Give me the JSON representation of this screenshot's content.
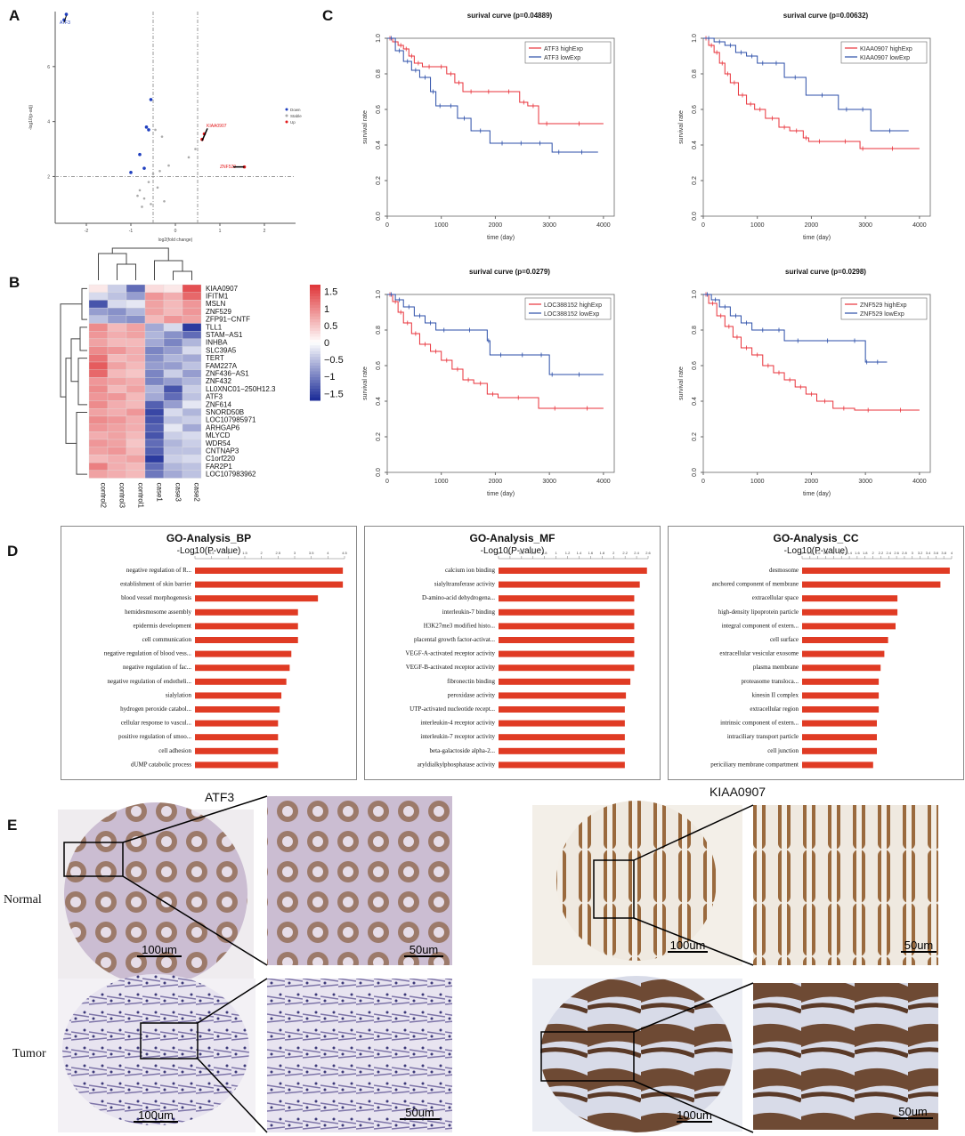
{
  "panels": {
    "A": "A",
    "B": "B",
    "C": "C",
    "D": "D",
    "E": "E"
  },
  "colors": {
    "up": "#e31a1c",
    "down": "#1f3fbf",
    "stable": "#aaaaaa",
    "km_high": "#e8323a",
    "km_low": "#2b4ea8",
    "bar": "#e03b24",
    "heat_high": "#e0393c",
    "heat_low": "#1f2f99"
  },
  "chart_data": [
    {
      "type": "scatter",
      "id": "volcano",
      "title": "",
      "xlabel": "log2(fold change)",
      "ylabel": "-log10(p-adj)",
      "xlim": [
        -2.7,
        2.7
      ],
      "ylim": [
        0.3,
        8.0
      ],
      "xticks": [
        -2,
        -1,
        0,
        1,
        2
      ],
      "yticks": [
        2,
        4,
        6
      ],
      "thresholds": {
        "x": [
          -0.5,
          0.5
        ],
        "y": 2
      },
      "legend": [
        "Down",
        "Stable",
        "Up"
      ],
      "points": [
        {
          "x": -2.45,
          "y": 7.9,
          "g": "down",
          "label": "ATF3"
        },
        {
          "x": -2.5,
          "y": 7.7,
          "g": "down"
        },
        {
          "x": -0.55,
          "y": 4.8,
          "g": "down"
        },
        {
          "x": -0.6,
          "y": 3.7,
          "g": "down"
        },
        {
          "x": -0.65,
          "y": 3.8,
          "g": "down"
        },
        {
          "x": -0.8,
          "y": 2.8,
          "g": "down"
        },
        {
          "x": -1.0,
          "y": 2.15,
          "g": "down"
        },
        {
          "x": -0.7,
          "y": 2.3,
          "g": "down"
        },
        {
          "x": -0.45,
          "y": 3.7,
          "g": "stable"
        },
        {
          "x": -0.3,
          "y": 3.45,
          "g": "stable"
        },
        {
          "x": -0.35,
          "y": 2.2,
          "g": "stable"
        },
        {
          "x": -0.5,
          "y": 2.1,
          "g": "stable"
        },
        {
          "x": -0.6,
          "y": 1.8,
          "g": "stable"
        },
        {
          "x": -0.8,
          "y": 1.5,
          "g": "stable"
        },
        {
          "x": -0.85,
          "y": 1.3,
          "g": "stable"
        },
        {
          "x": -0.7,
          "y": 1.2,
          "g": "stable"
        },
        {
          "x": -0.4,
          "y": 1.6,
          "g": "stable"
        },
        {
          "x": -0.25,
          "y": 1.1,
          "g": "stable"
        },
        {
          "x": -0.15,
          "y": 2.4,
          "g": "stable"
        },
        {
          "x": -0.75,
          "y": 0.9,
          "g": "stable"
        },
        {
          "x": -0.55,
          "y": 1.0,
          "g": "stable"
        },
        {
          "x": 0.65,
          "y": 3.55,
          "g": "up",
          "label": "KIAA0907"
        },
        {
          "x": 0.6,
          "y": 3.35,
          "g": "up"
        },
        {
          "x": 1.55,
          "y": 2.35,
          "g": "up",
          "label": "ZNF529"
        },
        {
          "x": 0.45,
          "y": 3.0,
          "g": "stable"
        },
        {
          "x": 0.3,
          "y": 2.7,
          "g": "stable"
        }
      ]
    },
    {
      "type": "heatmap",
      "id": "heatmap",
      "columns": [
        "control2",
        "control3",
        "control1",
        "case1",
        "case3",
        "case2"
      ],
      "rows": [
        "KIAA0907",
        "IFITM1",
        "MSLN",
        "ZNF529",
        "ZFP91−CNTF",
        "TLL1",
        "STAM−AS1",
        "INHBA",
        "SLC39A5",
        "TERT",
        "FAM227A",
        "ZNF436−AS1",
        "ZNF432",
        "LL0XNC01−250H12.3",
        "ATF3",
        "ZNF614",
        "SNORD50B",
        "LOC107985971",
        "ARHGAP6",
        "MLYCD",
        "WDR54",
        "CNTNAP3",
        "C1orf220",
        "FAR2P1",
        "LOC107983962"
      ],
      "values": [
        [
          0.2,
          -0.4,
          -1.2,
          0.3,
          0.2,
          1.5
        ],
        [
          -0.3,
          -0.5,
          -0.8,
          0.9,
          0.7,
          1.3
        ],
        [
          -1.4,
          -0.3,
          -0.2,
          0.8,
          0.6,
          0.9
        ],
        [
          -0.8,
          -0.9,
          -0.6,
          0.8,
          0.6,
          0.9
        ],
        [
          -0.5,
          -0.8,
          -0.9,
          0.6,
          0.9,
          0.8
        ],
        [
          1.0,
          0.6,
          0.8,
          -0.7,
          -0.3,
          -1.6
        ],
        [
          0.9,
          0.7,
          0.8,
          -0.6,
          -0.9,
          -1.2
        ],
        [
          0.8,
          0.6,
          0.6,
          -0.7,
          -1.0,
          -0.6
        ],
        [
          1.0,
          0.9,
          0.7,
          -1.0,
          -0.8,
          -0.3
        ],
        [
          1.2,
          0.6,
          0.7,
          -0.9,
          -0.6,
          -0.7
        ],
        [
          1.4,
          0.8,
          0.6,
          -0.8,
          -0.8,
          -0.5
        ],
        [
          1.3,
          0.6,
          0.5,
          -1.0,
          -0.4,
          -0.8
        ],
        [
          0.9,
          0.8,
          0.7,
          -1.0,
          -0.8,
          -0.6
        ],
        [
          1.0,
          0.6,
          0.8,
          -0.6,
          -1.4,
          -0.4
        ],
        [
          0.9,
          0.9,
          0.6,
          -0.7,
          -1.2,
          -0.5
        ],
        [
          1.0,
          0.7,
          0.6,
          -1.3,
          -0.8,
          -0.2
        ],
        [
          0.8,
          0.7,
          0.9,
          -1.5,
          -0.3,
          -0.6
        ],
        [
          1.0,
          0.9,
          0.7,
          -1.4,
          -0.5,
          -0.4
        ],
        [
          0.9,
          0.8,
          0.7,
          -1.3,
          -0.2,
          -0.7
        ],
        [
          0.7,
          0.8,
          0.6,
          -1.4,
          -0.4,
          -0.3
        ],
        [
          0.9,
          0.8,
          0.5,
          -1.2,
          -0.6,
          -0.4
        ],
        [
          0.8,
          0.9,
          0.6,
          -1.3,
          -0.5,
          -0.5
        ],
        [
          0.6,
          0.7,
          0.8,
          -1.6,
          -0.4,
          -0.3
        ],
        [
          1.1,
          0.7,
          0.6,
          -1.2,
          -0.6,
          -0.5
        ],
        [
          0.8,
          0.7,
          0.6,
          -1.1,
          -0.7,
          -0.5
        ]
      ],
      "legend_ticks": [
        "1.5",
        "1",
        "0.5",
        "0",
        "−0.5",
        "−1",
        "−1.5"
      ],
      "range": [
        -1.7,
        1.7
      ]
    },
    {
      "type": "line",
      "id": "km1",
      "title": "surival curve (p=0.04889)",
      "xlabel": "time (day)",
      "ylabel": "survival rate",
      "xlim": [
        0,
        4200
      ],
      "ylim": [
        0,
        1.0
      ],
      "xticks": [
        "0",
        "1000",
        "2000",
        "3000",
        "4000"
      ],
      "yticks": [
        "0.0",
        "0.2",
        "0.4",
        "0.6",
        "0.8",
        "1.0"
      ],
      "series": [
        {
          "name": "ATF3 highExp",
          "color": "high",
          "x": [
            0,
            100,
            200,
            300,
            400,
            500,
            650,
            900,
            1100,
            1250,
            1400,
            1700,
            2050,
            2450,
            2600,
            2800,
            3100,
            4000
          ],
          "y": [
            1.0,
            0.98,
            0.96,
            0.94,
            0.9,
            0.86,
            0.84,
            0.84,
            0.8,
            0.75,
            0.7,
            0.7,
            0.7,
            0.64,
            0.62,
            0.52,
            0.52,
            0.52
          ]
        },
        {
          "name": "ATF3 lowExp",
          "color": "low",
          "x": [
            0,
            150,
            300,
            450,
            600,
            800,
            900,
            1050,
            1300,
            1550,
            1900,
            2350,
            2600,
            3050,
            3300,
            3900
          ],
          "y": [
            1.0,
            0.93,
            0.87,
            0.82,
            0.78,
            0.7,
            0.62,
            0.62,
            0.55,
            0.48,
            0.41,
            0.41,
            0.41,
            0.36,
            0.36,
            0.36
          ]
        }
      ]
    },
    {
      "type": "line",
      "id": "km2",
      "title": "surival curve (p=0.00632)",
      "xlabel": "time (day)",
      "ylabel": "survival rate",
      "xlim": [
        0,
        4200
      ],
      "ylim": [
        0,
        1.0
      ],
      "xticks": [
        "0",
        "1000",
        "2000",
        "3000",
        "4000"
      ],
      "yticks": [
        "0.0",
        "0.2",
        "0.4",
        "0.6",
        "0.8",
        "1.0"
      ],
      "series": [
        {
          "name": "KIAA0907 highExp",
          "color": "high",
          "x": [
            0,
            100,
            200,
            300,
            400,
            500,
            650,
            800,
            950,
            1150,
            1400,
            1600,
            1850,
            1950,
            2350,
            2900,
            3000,
            4000
          ],
          "y": [
            1.0,
            0.96,
            0.92,
            0.86,
            0.8,
            0.75,
            0.68,
            0.63,
            0.6,
            0.55,
            0.5,
            0.48,
            0.44,
            0.42,
            0.42,
            0.38,
            0.38,
            0.38
          ]
        },
        {
          "name": "KIAA0907 lowExp",
          "color": "low",
          "x": [
            0,
            200,
            400,
            600,
            800,
            1000,
            1200,
            1500,
            1900,
            2500,
            2800,
            3100,
            3800
          ],
          "y": [
            1.0,
            0.98,
            0.96,
            0.92,
            0.9,
            0.86,
            0.86,
            0.78,
            0.68,
            0.6,
            0.6,
            0.48,
            0.48
          ]
        }
      ]
    },
    {
      "type": "line",
      "id": "km3",
      "title": "surival curve (p=0.0279)",
      "xlabel": "time (day)",
      "ylabel": "survival rate",
      "xlim": [
        0,
        4200
      ],
      "ylim": [
        0,
        1.0
      ],
      "xticks": [
        "0",
        "1000",
        "2000",
        "3000",
        "4000"
      ],
      "yticks": [
        "0.0",
        "0.2",
        "0.4",
        "0.6",
        "0.8",
        "1.0"
      ],
      "series": [
        {
          "name": "LOC388152 highExp",
          "color": "high",
          "x": [
            0,
            100,
            200,
            300,
            450,
            600,
            800,
            1000,
            1200,
            1400,
            1600,
            1850,
            2050,
            2800,
            3400,
            4000
          ],
          "y": [
            1.0,
            0.96,
            0.9,
            0.84,
            0.78,
            0.72,
            0.68,
            0.63,
            0.58,
            0.52,
            0.5,
            0.44,
            0.42,
            0.36,
            0.36,
            0.36
          ]
        },
        {
          "name": "LOC388152 lowExp",
          "color": "low",
          "x": [
            0,
            150,
            300,
            500,
            700,
            900,
            1200,
            1850,
            1900,
            2300,
            2700,
            3000,
            3100,
            4000
          ],
          "y": [
            1.0,
            0.97,
            0.93,
            0.88,
            0.84,
            0.8,
            0.8,
            0.74,
            0.66,
            0.66,
            0.66,
            0.55,
            0.55,
            0.55
          ]
        }
      ]
    },
    {
      "type": "line",
      "id": "km4",
      "title": "surival curve (p=0.0298)",
      "xlabel": "time (day)",
      "ylabel": "survival rate",
      "xlim": [
        0,
        4200
      ],
      "ylim": [
        0,
        1.0
      ],
      "xticks": [
        "0",
        "1000",
        "2000",
        "3000",
        "4000"
      ],
      "yticks": [
        "0.0",
        "0.2",
        "0.4",
        "0.6",
        "0.8",
        "1.0"
      ],
      "series": [
        {
          "name": "ZNF529 highExp",
          "color": "high",
          "x": [
            0,
            100,
            250,
            400,
            550,
            700,
            900,
            1100,
            1300,
            1500,
            1700,
            1900,
            2100,
            2400,
            2800,
            3300,
            4000
          ],
          "y": [
            1.0,
            0.95,
            0.88,
            0.82,
            0.76,
            0.7,
            0.66,
            0.6,
            0.56,
            0.52,
            0.48,
            0.44,
            0.4,
            0.36,
            0.35,
            0.35,
            0.35
          ]
        },
        {
          "name": "ZNF529 lowExp",
          "color": "low",
          "x": [
            0,
            150,
            300,
            500,
            700,
            900,
            1300,
            1500,
            2000,
            2600,
            3000,
            3050,
            3400
          ],
          "y": [
            1.0,
            0.97,
            0.93,
            0.88,
            0.84,
            0.8,
            0.8,
            0.74,
            0.74,
            0.74,
            0.62,
            0.62,
            0.62
          ]
        }
      ]
    },
    {
      "type": "bar",
      "id": "go_bp",
      "title": "GO-Analysis_BP",
      "xlabel": "-Log10(P-value)",
      "xlim": [
        0,
        4.5
      ],
      "xticks": [
        "0",
        "0.5",
        "1",
        "1.5",
        "2",
        "2.5",
        "3",
        "3.5",
        "4",
        "4.5"
      ],
      "categories": [
        "negative regulation of R...",
        "establishment of skin barrier",
        "blood vessel morphogenesis",
        "hemidesmosome assembly",
        "epidermis development",
        "cell communication",
        "negative regulation of blood vess...",
        "negative regulation of fac...",
        "negative regulation of endotheli...",
        "sialylation",
        "hydrogen peroxide catabol...",
        "cellular response to vascul...",
        "positive regulation of smoo...",
        "cell adhesion",
        "dUMP catabolic process"
      ],
      "values": [
        4.45,
        4.45,
        3.7,
        3.1,
        3.1,
        3.1,
        2.9,
        2.85,
        2.75,
        2.6,
        2.55,
        2.5,
        2.5,
        2.5,
        2.5
      ]
    },
    {
      "type": "bar",
      "id": "go_mf",
      "title": "GO-Analysis_MF",
      "xlabel": "-Log10(P-value)",
      "xlim": [
        0,
        2.7
      ],
      "xticks": [
        "0",
        "0.2",
        "0.4",
        "0.6",
        "0.8",
        "1",
        "1.2",
        "1.4",
        "1.6",
        "1.8",
        "2",
        "2.2",
        "2.4",
        "2.6"
      ],
      "categories": [
        "calcium ion binding",
        "sialyltransferase activity",
        "D-amino-acid dehydrogena...",
        "interleukin-7 binding",
        "H3K27me3 modified histo...",
        "placental growth factor-activat...",
        "VEGF-A-activated receptor activity",
        "VEGF-B-activated receptor activity",
        "fibronectin binding",
        "peroxidase activity",
        "UTP-activated nucleotide recept...",
        "interleukin-4 receptor activity",
        "interleukin-7 receptor activity",
        "beta-galactoside alpha-2...",
        "aryldialkylphosphatase activity"
      ],
      "values": [
        2.68,
        2.55,
        2.45,
        2.45,
        2.45,
        2.45,
        2.45,
        2.45,
        2.38,
        2.3,
        2.28,
        2.28,
        2.28,
        2.28,
        2.28
      ]
    },
    {
      "type": "bar",
      "id": "go_cc",
      "title": "GO-Analysis_CC",
      "xlabel": "-Log10(P-value)",
      "xlim": [
        0,
        4.0
      ],
      "xticks": [
        "0",
        "0.4",
        "0.6",
        "0.8",
        "1",
        "1.2",
        "1.4",
        "1.6",
        "1.8",
        "2",
        "2.2",
        "2.4",
        "2.6",
        "2.8",
        "3",
        "3.2",
        "3.4",
        "3.6",
        "3.8",
        "4"
      ],
      "categories": [
        "desmosome",
        "anchored component of membrane",
        "extracellular space",
        "high-density lipoprotein particle",
        "integral component of extern...",
        "cell surface",
        "extracellular vesicular exosome",
        "plasma membrane",
        "proteasome transloca...",
        "kinesin II complex",
        "extracellular region",
        "intrinsic component of extern...",
        "intraciliary transport particle",
        "cell junction",
        "periciliary membrane compartment"
      ],
      "values": [
        3.95,
        3.7,
        2.55,
        2.55,
        2.5,
        2.3,
        2.2,
        2.1,
        2.05,
        2.05,
        2.05,
        2.0,
        2.0,
        2.0,
        1.9
      ]
    }
  ],
  "volcano_labels": {
    "atf3": "ATF3",
    "kiaa": "KIAA0907",
    "znf": "ZNF529",
    "legend_down": "Down",
    "legend_stable": "Stable",
    "legend_up": "Up"
  },
  "ihc": {
    "gene_left": "ATF3",
    "gene_right": "KIAA0907",
    "row_normal": "Normal",
    "row_tumor": "Tumor",
    "scale_100": "100um",
    "scale_50": "50um"
  }
}
